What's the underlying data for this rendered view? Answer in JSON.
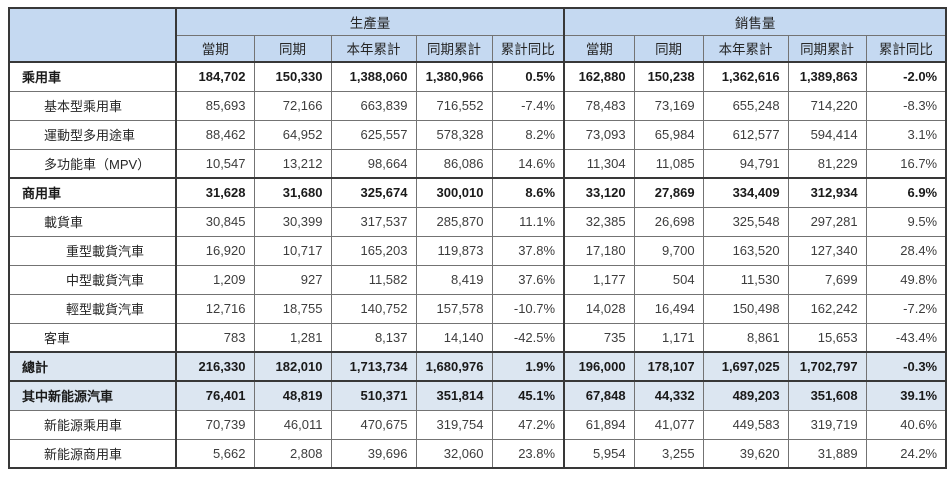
{
  "table": {
    "corner_label": "",
    "section_headers": [
      "生產量",
      "銷售量"
    ],
    "column_headers": [
      "當期",
      "同期",
      "本年累計",
      "同期累計",
      "累計同比"
    ],
    "rows": [
      {
        "label": "乘用車",
        "indent": 0,
        "bold": true,
        "highlight": false,
        "group_top": false,
        "production": [
          "184,702",
          "150,330",
          "1,388,060",
          "1,380,966",
          "0.5%"
        ],
        "sales": [
          "162,880",
          "150,238",
          "1,362,616",
          "1,389,863",
          "-2.0%"
        ]
      },
      {
        "label": "基本型乘用車",
        "indent": 1,
        "bold": false,
        "highlight": false,
        "group_top": false,
        "production": [
          "85,693",
          "72,166",
          "663,839",
          "716,552",
          "-7.4%"
        ],
        "sales": [
          "78,483",
          "73,169",
          "655,248",
          "714,220",
          "-8.3%"
        ]
      },
      {
        "label": "運動型多用途車",
        "indent": 1,
        "bold": false,
        "highlight": false,
        "group_top": false,
        "production": [
          "88,462",
          "64,952",
          "625,557",
          "578,328",
          "8.2%"
        ],
        "sales": [
          "73,093",
          "65,984",
          "612,577",
          "594,414",
          "3.1%"
        ]
      },
      {
        "label": "多功能車（MPV）",
        "indent": 1,
        "bold": false,
        "highlight": false,
        "group_top": false,
        "production": [
          "10,547",
          "13,212",
          "98,664",
          "86,086",
          "14.6%"
        ],
        "sales": [
          "11,304",
          "11,085",
          "94,791",
          "81,229",
          "16.7%"
        ]
      },
      {
        "label": "商用車",
        "indent": 0,
        "bold": true,
        "highlight": false,
        "group_top": true,
        "production": [
          "31,628",
          "31,680",
          "325,674",
          "300,010",
          "8.6%"
        ],
        "sales": [
          "33,120",
          "27,869",
          "334,409",
          "312,934",
          "6.9%"
        ]
      },
      {
        "label": "載貨車",
        "indent": 1,
        "bold": false,
        "highlight": false,
        "group_top": false,
        "production": [
          "30,845",
          "30,399",
          "317,537",
          "285,870",
          "11.1%"
        ],
        "sales": [
          "32,385",
          "26,698",
          "325,548",
          "297,281",
          "9.5%"
        ]
      },
      {
        "label": "重型載貨汽車",
        "indent": 2,
        "bold": false,
        "highlight": false,
        "group_top": false,
        "production": [
          "16,920",
          "10,717",
          "165,203",
          "119,873",
          "37.8%"
        ],
        "sales": [
          "17,180",
          "9,700",
          "163,520",
          "127,340",
          "28.4%"
        ]
      },
      {
        "label": "中型載貨汽車",
        "indent": 2,
        "bold": false,
        "highlight": false,
        "group_top": false,
        "production": [
          "1,209",
          "927",
          "11,582",
          "8,419",
          "37.6%"
        ],
        "sales": [
          "1,177",
          "504",
          "11,530",
          "7,699",
          "49.8%"
        ]
      },
      {
        "label": "輕型載貨汽車",
        "indent": 2,
        "bold": false,
        "highlight": false,
        "group_top": false,
        "production": [
          "12,716",
          "18,755",
          "140,752",
          "157,578",
          "-10.7%"
        ],
        "sales": [
          "14,028",
          "16,494",
          "150,498",
          "162,242",
          "-7.2%"
        ]
      },
      {
        "label": "客車",
        "indent": 1,
        "bold": false,
        "highlight": false,
        "group_top": false,
        "production": [
          "783",
          "1,281",
          "8,137",
          "14,140",
          "-42.5%"
        ],
        "sales": [
          "735",
          "1,171",
          "8,861",
          "15,653",
          "-43.4%"
        ]
      },
      {
        "label": "總計",
        "indent": 0,
        "bold": true,
        "highlight": true,
        "group_top": true,
        "production": [
          "216,330",
          "182,010",
          "1,713,734",
          "1,680,976",
          "1.9%"
        ],
        "sales": [
          "196,000",
          "178,107",
          "1,697,025",
          "1,702,797",
          "-0.3%"
        ]
      },
      {
        "label": "其中新能源汽車",
        "indent": 0,
        "bold": true,
        "highlight": true,
        "group_top": true,
        "production": [
          "76,401",
          "48,819",
          "510,371",
          "351,814",
          "45.1%"
        ],
        "sales": [
          "67,848",
          "44,332",
          "489,203",
          "351,608",
          "39.1%"
        ]
      },
      {
        "label": "新能源乘用車",
        "indent": 1,
        "bold": false,
        "highlight": false,
        "group_top": false,
        "production": [
          "70,739",
          "46,011",
          "470,675",
          "319,754",
          "47.2%"
        ],
        "sales": [
          "61,894",
          "41,077",
          "449,583",
          "319,719",
          "40.6%"
        ]
      },
      {
        "label": "新能源商用車",
        "indent": 1,
        "bold": false,
        "highlight": false,
        "group_top": false,
        "production": [
          "5,662",
          "2,808",
          "39,696",
          "32,060",
          "23.8%"
        ],
        "sales": [
          "5,954",
          "3,255",
          "39,620",
          "31,889",
          "24.2%"
        ]
      }
    ],
    "colors": {
      "header_fill": "#c5d9f1",
      "highlight_fill": "#dce6f1",
      "thin_border": "#737373",
      "thick_border": "#383838"
    }
  }
}
